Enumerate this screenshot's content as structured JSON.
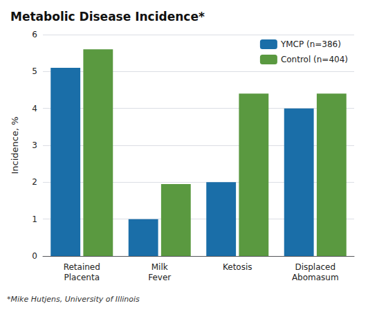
{
  "chart_data": {
    "type": "bar",
    "title": "Metabolic Disease Incidence*",
    "ylabel": "Incidence, %",
    "footnote": "*Mike Hutjens, University of Illinois",
    "categories": [
      "Retained\nPlacenta",
      "Milk\nFever",
      "Ketosis",
      "Displaced\nAbomasum"
    ],
    "series": [
      {
        "name": "YMCP (n=386)",
        "color": "#1a6ea8",
        "values": [
          5.1,
          1.0,
          2.0,
          4.0
        ]
      },
      {
        "name": "Control (n=404)",
        "color": "#5a9940",
        "values": [
          5.6,
          1.95,
          4.4,
          4.4
        ]
      }
    ],
    "ylim": [
      0,
      6
    ],
    "yticks": [
      0,
      1,
      2,
      3,
      4,
      5,
      6
    ],
    "grid": true,
    "legend": "upper right"
  }
}
